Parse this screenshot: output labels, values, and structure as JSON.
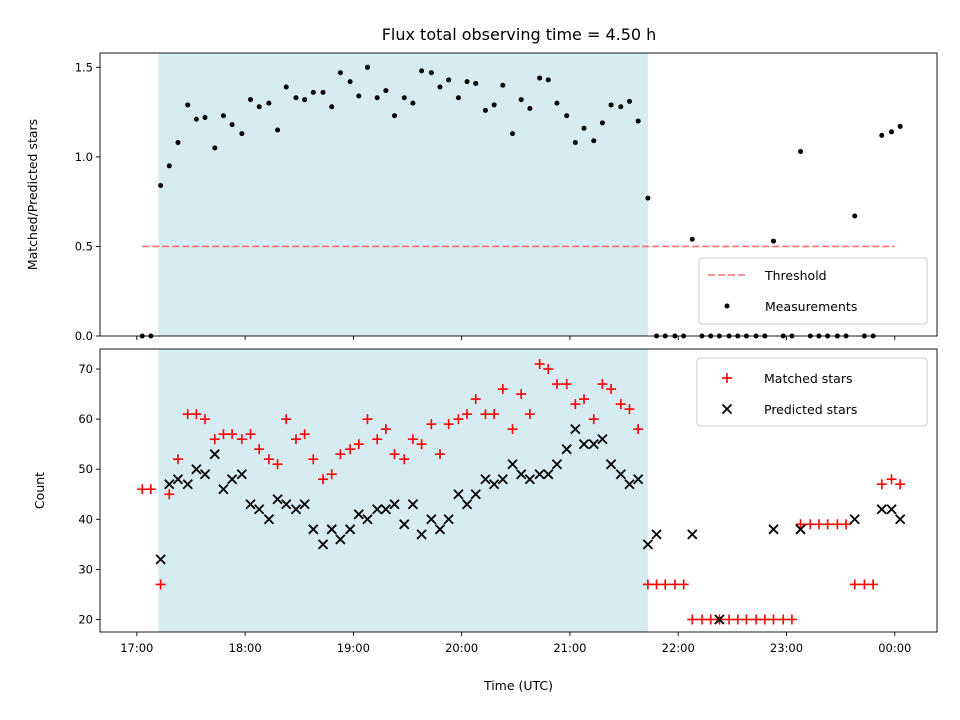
{
  "chart_data": [
    {
      "type": "scatter",
      "title": "Flux total observing time = 4.50 h",
      "xlabel": "",
      "ylabel": "Matched/Predicted stars",
      "ylim": [
        0,
        1.58
      ],
      "yticks": [
        "0.0",
        "0.5",
        "1.0",
        "1.5"
      ],
      "ytick_values": [
        0,
        0.5,
        1.0,
        1.5
      ],
      "xlim_hours": [
        16.66,
        24.39
      ],
      "grid": false,
      "legend_position": "lower-right",
      "shaded_span_hours": [
        17.2,
        21.72
      ],
      "threshold": {
        "name": "Threshold",
        "value": 0.5,
        "x_range_hours": [
          17.05,
          24.0
        ],
        "color": "#ff6f6f"
      },
      "series": [
        {
          "name": "Measurements",
          "color": "#000000",
          "x": [
            17.05,
            17.13,
            17.22,
            17.3,
            17.38,
            17.47,
            17.55,
            17.63,
            17.72,
            17.8,
            17.88,
            17.97,
            18.05,
            18.13,
            18.22,
            18.3,
            18.38,
            18.47,
            18.55,
            18.63,
            18.72,
            18.8,
            18.88,
            18.97,
            19.05,
            19.13,
            19.22,
            19.3,
            19.38,
            19.47,
            19.55,
            19.63,
            19.72,
            19.8,
            19.88,
            19.97,
            20.05,
            20.13,
            20.22,
            20.3,
            20.38,
            20.47,
            20.55,
            20.63,
            20.72,
            20.8,
            20.88,
            20.97,
            21.05,
            21.13,
            21.22,
            21.3,
            21.38,
            21.47,
            21.55,
            21.63,
            21.72,
            21.8,
            21.88,
            21.97,
            22.05,
            22.13,
            22.22,
            22.3,
            22.38,
            22.47,
            22.55,
            22.63,
            22.72,
            22.8,
            22.88,
            22.97,
            23.05,
            23.13,
            23.22,
            23.3,
            23.38,
            23.47,
            23.55,
            23.63,
            23.72,
            23.8,
            23.88,
            23.97,
            24.05
          ],
          "y": [
            0,
            0,
            0.84,
            0.95,
            1.08,
            1.29,
            1.21,
            1.22,
            1.05,
            1.23,
            1.18,
            1.13,
            1.32,
            1.28,
            1.3,
            1.15,
            1.39,
            1.33,
            1.32,
            1.36,
            1.36,
            1.28,
            1.47,
            1.42,
            1.34,
            1.5,
            1.33,
            1.37,
            1.23,
            1.33,
            1.3,
            1.48,
            1.47,
            1.39,
            1.43,
            1.33,
            1.42,
            1.41,
            1.26,
            1.29,
            1.4,
            1.13,
            1.32,
            1.27,
            1.44,
            1.43,
            1.3,
            1.23,
            1.08,
            1.16,
            1.09,
            1.19,
            1.29,
            1.28,
            1.31,
            1.2,
            0.77,
            0,
            0,
            0,
            0,
            0.54,
            0,
            0,
            0,
            0,
            0,
            0,
            0,
            0,
            0.53,
            0,
            0,
            1.03,
            0,
            0,
            0,
            0,
            0,
            0.67,
            0,
            0,
            1.12,
            1.14,
            1.17
          ]
        }
      ]
    },
    {
      "type": "scatter",
      "title": "",
      "xlabel": "Time (UTC)",
      "ylabel": "Count",
      "ylim": [
        17.5,
        74
      ],
      "yticks": [
        "20",
        "30",
        "40",
        "50",
        "60",
        "70"
      ],
      "ytick_values": [
        20,
        30,
        40,
        50,
        60,
        70
      ],
      "xticks": [
        "17:00",
        "18:00",
        "19:00",
        "20:00",
        "21:00",
        "22:00",
        "23:00",
        "00:00"
      ],
      "xtick_hours": [
        17,
        18,
        19,
        20,
        21,
        22,
        23,
        24
      ],
      "xlim_hours": [
        16.66,
        24.39
      ],
      "grid": false,
      "legend_position": "upper-right",
      "shaded_span_hours": [
        17.2,
        21.72
      ],
      "series": [
        {
          "name": "Matched stars",
          "marker": "plus",
          "color": "#ff0000",
          "x": [
            17.05,
            17.13,
            17.22,
            17.3,
            17.38,
            17.47,
            17.55,
            17.63,
            17.72,
            17.8,
            17.88,
            17.97,
            18.05,
            18.13,
            18.22,
            18.3,
            18.38,
            18.47,
            18.55,
            18.63,
            18.72,
            18.8,
            18.88,
            18.97,
            19.05,
            19.13,
            19.22,
            19.3,
            19.38,
            19.47,
            19.55,
            19.63,
            19.72,
            19.8,
            19.88,
            19.97,
            20.05,
            20.13,
            20.22,
            20.3,
            20.38,
            20.47,
            20.55,
            20.63,
            20.72,
            20.8,
            20.88,
            20.97,
            21.05,
            21.13,
            21.22,
            21.3,
            21.38,
            21.47,
            21.55,
            21.63,
            21.72,
            21.8,
            21.88,
            21.97,
            22.05,
            22.13,
            22.22,
            22.3,
            22.38,
            22.47,
            22.55,
            22.63,
            22.72,
            22.8,
            22.88,
            22.97,
            23.05,
            23.13,
            23.22,
            23.3,
            23.38,
            23.47,
            23.55,
            23.63,
            23.72,
            23.8,
            23.88,
            23.97,
            24.05
          ],
          "y": [
            46,
            46,
            27,
            45,
            52,
            61,
            61,
            60,
            56,
            57,
            57,
            56,
            57,
            54,
            52,
            51,
            60,
            56,
            57,
            52,
            48,
            49,
            53,
            54,
            55,
            60,
            56,
            58,
            53,
            52,
            56,
            55,
            59,
            53,
            59,
            60,
            61,
            64,
            61,
            61,
            66,
            58,
            65,
            61,
            71,
            70,
            67,
            67,
            63,
            64,
            60,
            67,
            66,
            63,
            62,
            58,
            27,
            27,
            27,
            27,
            27,
            20,
            20,
            20,
            20,
            20,
            20,
            20,
            20,
            20,
            20,
            20,
            20,
            39,
            39,
            39,
            39,
            39,
            39,
            27,
            27,
            27,
            47,
            48,
            47
          ]
        },
        {
          "name": "Predicted stars",
          "marker": "x",
          "color": "#000000",
          "x": [
            17.22,
            17.3,
            17.38,
            17.47,
            17.55,
            17.63,
            17.72,
            17.8,
            17.88,
            17.97,
            18.05,
            18.13,
            18.22,
            18.3,
            18.38,
            18.47,
            18.55,
            18.63,
            18.72,
            18.8,
            18.88,
            18.97,
            19.05,
            19.13,
            19.22,
            19.3,
            19.38,
            19.47,
            19.55,
            19.63,
            19.72,
            19.8,
            19.88,
            19.97,
            20.05,
            20.13,
            20.22,
            20.3,
            20.38,
            20.47,
            20.55,
            20.63,
            20.72,
            20.8,
            20.88,
            20.97,
            21.05,
            21.13,
            21.22,
            21.3,
            21.38,
            21.47,
            21.55,
            21.63,
            21.72,
            21.8,
            22.13,
            22.38,
            22.88,
            23.13,
            23.63,
            23.88,
            23.97,
            24.05
          ],
          "y": [
            32,
            47,
            48,
            47,
            50,
            49,
            53,
            46,
            48,
            49,
            43,
            42,
            40,
            44,
            43,
            42,
            43,
            38,
            35,
            38,
            36,
            38,
            41,
            40,
            42,
            42,
            43,
            39,
            43,
            37,
            40,
            38,
            40,
            45,
            43,
            45,
            48,
            47,
            48,
            51,
            49,
            48,
            49,
            49,
            51,
            54,
            58,
            55,
            55,
            56,
            51,
            49,
            47,
            48,
            35,
            37,
            37,
            20,
            38,
            38,
            40,
            42,
            42,
            40
          ]
        }
      ]
    }
  ]
}
